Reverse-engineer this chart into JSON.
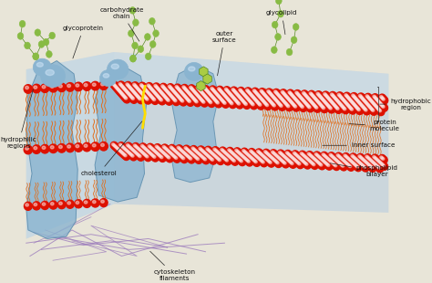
{
  "labels": {
    "carbohydrate_chain": "carbohydrate\nchain",
    "glycolipid": "glycolipid",
    "glycoprotein": "glycoprotein",
    "outer_surface": "outer\nsurface",
    "hydrophobic_region": "hydrophobic\nregion",
    "protein_molecule": "protein\nmolecule",
    "inner_surface": "inner surface",
    "phospholipid_bilayer": "phospholipid\nbilayer",
    "hydrophilic_regions": "hydrophilic\nregions",
    "cholesterol": "cholesterol",
    "cytoskeleton_filaments": "cytoskeleton\nfilaments"
  },
  "colors": {
    "red_sphere": "#dd1100",
    "red_sphere_hi": "#ff6655",
    "blue_protein": "#8ab4d0",
    "blue_protein_dark": "#5588aa",
    "orange_tail": "#e07020",
    "orange_tail2": "#c85010",
    "green_carb": "#88bb44",
    "green_carb_dark": "#558822",
    "green_hex": "#aacc44",
    "yellow_chol": "#ffdd00",
    "purple_fil": "#9977bb",
    "bg": "#e8e5d8",
    "membrane_bg": "#b8cce0",
    "membrane_face": "#ccdded",
    "inner_blue": "#a0b8cc",
    "label_color": "#111111",
    "white_hi": "#ffeeee"
  },
  "figsize": [
    4.74,
    3.1
  ],
  "dpi": 100
}
